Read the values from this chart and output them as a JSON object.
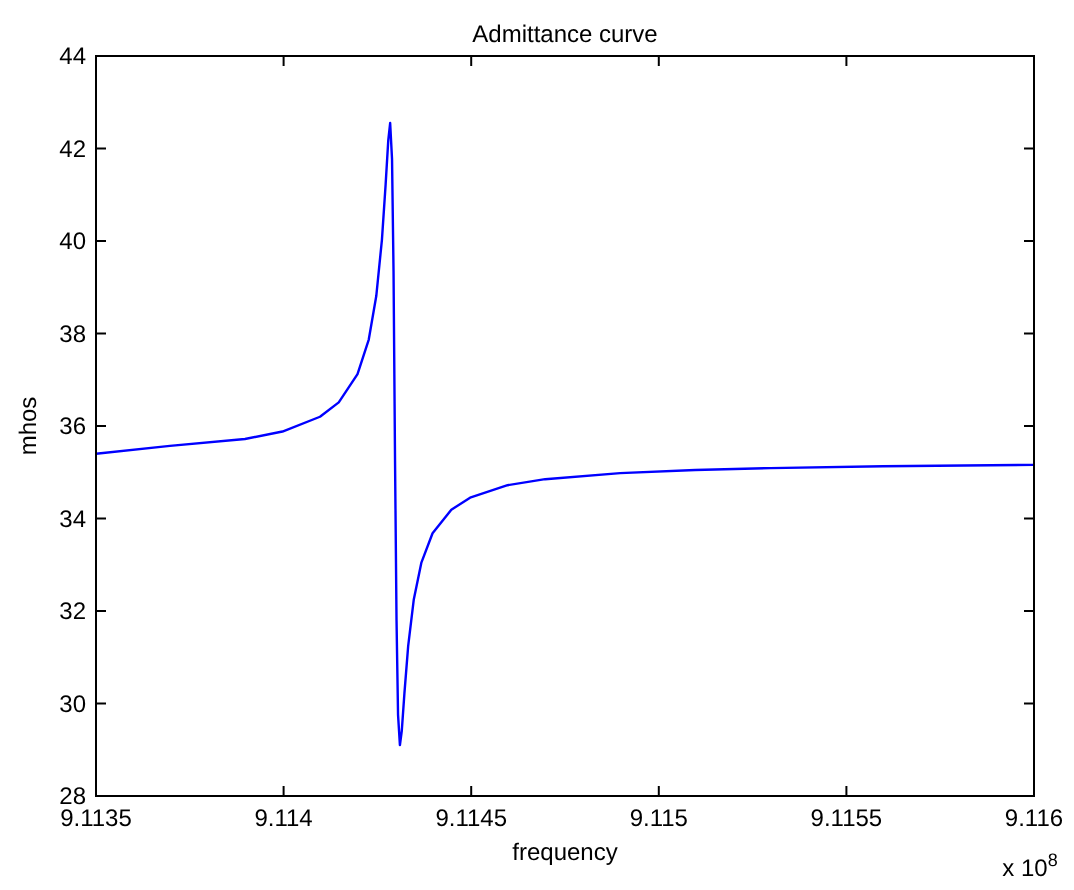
{
  "chart_data": {
    "type": "line",
    "title": "Admittance curve",
    "xlabel": "frequency",
    "ylabel": "mhos",
    "annotations": [
      "x 10$^{8}$"
    ],
    "x": [
      9.1135,
      9.113697,
      9.113897,
      9.113997,
      9.114097,
      9.114147,
      9.114197,
      9.114227,
      9.114247,
      9.114262,
      9.114272,
      9.114279,
      9.114284,
      9.114289,
      9.114293,
      9.114297,
      9.114301,
      9.114305,
      9.11431,
      9.114315,
      9.114322,
      9.114332,
      9.114347,
      9.114367,
      9.114397,
      9.114447,
      9.114497,
      9.114597,
      9.114697,
      9.114897,
      9.115097,
      9.115297,
      9.115597,
      9.116
    ],
    "series": [
      {
        "color": "#0000ff",
        "values": [
          35.4,
          35.57,
          35.72,
          35.88,
          36.2,
          36.51,
          37.12,
          37.87,
          38.81,
          40.02,
          41.23,
          42.18,
          42.55,
          41.77,
          39.35,
          35.25,
          31.79,
          29.76,
          29.1,
          29.41,
          30.22,
          31.24,
          32.25,
          33.04,
          33.68,
          34.19,
          34.45,
          34.72,
          34.85,
          34.98,
          35.05,
          35.09,
          35.13,
          35.16
        ]
      }
    ],
    "xlim": [
      9.1135,
      9.116
    ],
    "xticks": [
      9.1135,
      9.114,
      9.1145,
      9.115,
      9.1155,
      9.116
    ],
    "ylim": [
      28,
      44
    ],
    "yticks": [
      28,
      30,
      32,
      34,
      36,
      38,
      40,
      42,
      44
    ],
    "grid": false,
    "marker": "none",
    "line_style": "solid"
  }
}
